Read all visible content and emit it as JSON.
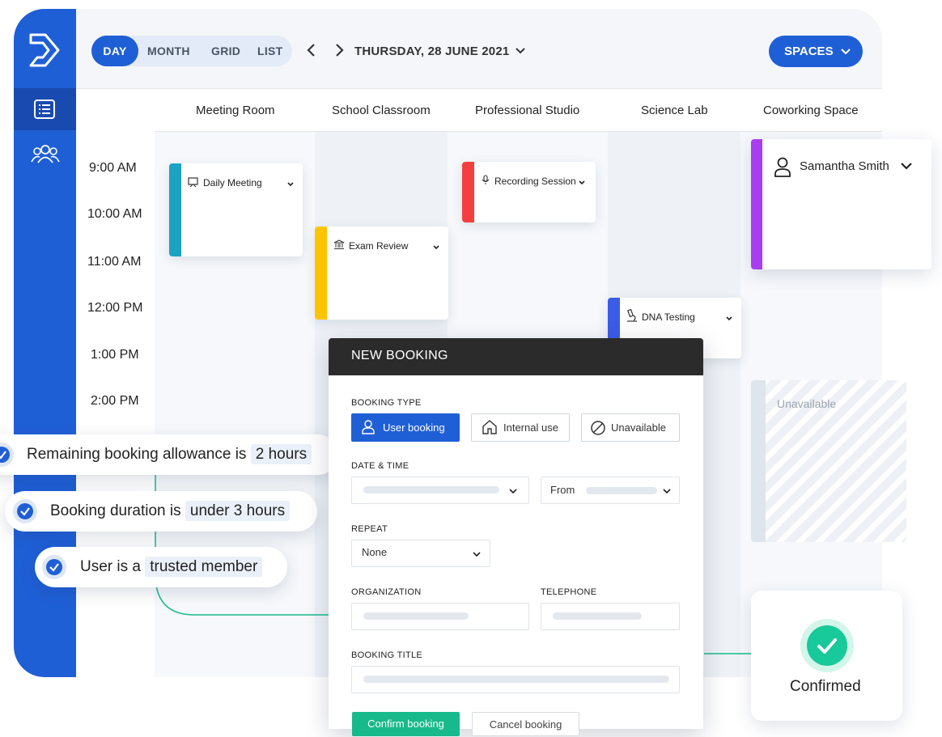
{
  "app": {
    "brand_color": "#1f5fd6",
    "sidebar": {
      "logo": "brand-logo-icon",
      "items": [
        {
          "icon": "list-icon",
          "active": true
        },
        {
          "icon": "users-icon",
          "active": false
        }
      ]
    }
  },
  "topbar": {
    "view_tabs": [
      "DAY",
      "MONTH",
      "GRID",
      "LIST"
    ],
    "active_view": "DAY",
    "date": "THURSDAY, 28 JUNE 2021",
    "spaces_label": "SPACES"
  },
  "calendar": {
    "columns": [
      "Meeting Room",
      "School Classroom",
      "Professional Studio",
      "Science Lab",
      "Coworking Space"
    ],
    "times": [
      "9:00 AM",
      "10:00 AM",
      "11:00 AM",
      "12:00 PM",
      "1:00 PM",
      "2:00 PM"
    ],
    "events": [
      {
        "title": "Daily Meeting",
        "icon": "presentation-icon",
        "color": "#1aa3c3"
      },
      {
        "title": "Exam Review",
        "icon": "institution-icon",
        "color": "#ffc400"
      },
      {
        "title": "Recording Session",
        "icon": "microphone-icon",
        "color": "#f43f3f"
      },
      {
        "title": "DNA Testing",
        "icon": "microscope-icon",
        "color": "#3b5ce6"
      },
      {
        "title": "Samantha Smith",
        "icon": "user-icon",
        "color": "#a93df0"
      }
    ],
    "unavailable_label": "Unavailable"
  },
  "rules": [
    {
      "text": "Remaining booking allowance is",
      "highlight": "2 hours"
    },
    {
      "text": "Booking duration is",
      "highlight": "under 3 hours"
    },
    {
      "text": "User is a",
      "highlight": "trusted member"
    }
  ],
  "booking": {
    "title": "NEW BOOKING",
    "type_label": "BOOKING TYPE",
    "types": [
      "User booking",
      "Internal use",
      "Unavailable"
    ],
    "selected_type": "User booking",
    "datetime_label": "DATE & TIME",
    "from_label": "From",
    "repeat_label": "REPEAT",
    "repeat_value": "None",
    "organization_label": "ORGANIZATION",
    "telephone_label": "TELEPHONE",
    "booking_title_label": "BOOKING TITLE",
    "confirm_label": "Confirm booking",
    "cancel_label": "Cancel booking"
  },
  "confirmed": {
    "label": "Confirmed",
    "color": "#18c99a"
  }
}
